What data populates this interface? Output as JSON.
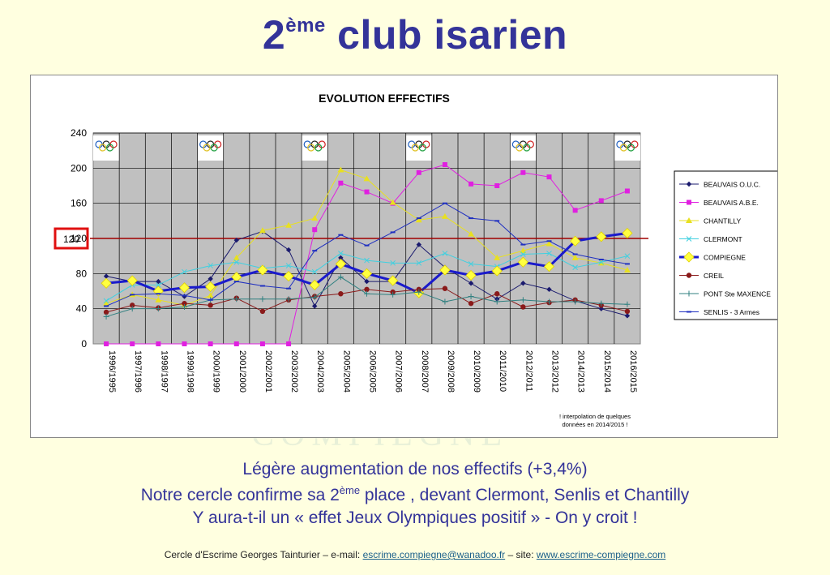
{
  "slide": {
    "title_main": "2",
    "title_sup": "ème",
    "title_rest": " club isarien",
    "watermark": "COMPIEGNE",
    "line1": "Légère augmentation de nos effectifs (+3,4%)",
    "line2_a": "Notre cercle confirme sa 2",
    "line2_sup": "ème",
    "line2_b": " place , devant Clermont, Senlis et Chantilly",
    "line3": "Y aura-t-il un « effet Jeux Olympiques positif » - On y croit !",
    "footer_a": "Cercle d'Escrime Georges Tainturier – e-mail: ",
    "footer_email": "escrime.compiegne@wanadoo.fr",
    "footer_b": " – site: ",
    "footer_site": "www.escrime-compiegne.com"
  },
  "chart_data": {
    "type": "line",
    "title": "EVOLUTION EFFECTIFS",
    "ylim": [
      0,
      240
    ],
    "yticks": [
      0,
      40,
      80,
      120,
      160,
      200,
      240
    ],
    "reference_line": 120,
    "reference_label": "120",
    "olympic_years": [
      "1996/1995",
      "2000/1999",
      "2004/2003",
      "2008/2007",
      "2012/2011",
      "2016/2015"
    ],
    "annotation_line1": "! interpolation de quelques",
    "annotation_line2": "données en 2014/2015 !",
    "categories": [
      "1996/1995",
      "1997/1996",
      "1998/1997",
      "1999/1998",
      "2000/1999",
      "2001/2000",
      "2002/2001",
      "2003/2002",
      "2004/2003",
      "2005/2004",
      "2006/2005",
      "2007/2006",
      "2008/2007",
      "2009/2008",
      "2010/2009",
      "2011/2010",
      "2012/2011",
      "2013/2012",
      "2014/2013",
      "2015/2014",
      "2016/2015"
    ],
    "series": [
      {
        "name": "BEAUVAIS O.U.C.",
        "color": "#1a1a6e",
        "marker": "diamond",
        "width": 1,
        "values": [
          77,
          71,
          71,
          54,
          74,
          118,
          128,
          107,
          43,
          98,
          71,
          71,
          113,
          87,
          69,
          51,
          69,
          62,
          49,
          40,
          32
        ]
      },
      {
        "name": "BEAUVAIS A.B.E.",
        "color": "#e020e0",
        "marker": "square",
        "width": 1,
        "values": [
          0,
          0,
          0,
          0,
          0,
          0,
          0,
          0,
          130,
          183,
          173,
          160,
          195,
          204,
          182,
          180,
          195,
          190,
          152,
          163,
          174
        ]
      },
      {
        "name": "CHANTILLY",
        "color": "#e8e020",
        "marker": "triangle",
        "width": 1,
        "values": [
          46,
          56,
          50,
          44,
          55,
          98,
          129,
          135,
          143,
          198,
          188,
          161,
          141,
          145,
          125,
          98,
          106,
          114,
          98,
          92,
          84
        ]
      },
      {
        "name": "CLERMONT",
        "color": "#40d0e0",
        "marker": "x",
        "width": 1,
        "values": [
          49,
          67,
          67,
          82,
          89,
          93,
          86,
          89,
          82,
          103,
          95,
          92,
          92,
          103,
          91,
          88,
          102,
          103,
          87,
          93,
          100
        ]
      },
      {
        "name": "COMPIEGNE",
        "color": "#1a1acc",
        "marker": "bigdiamond",
        "width": 3,
        "values": [
          69,
          72,
          60,
          64,
          65,
          76,
          84,
          77,
          67,
          91,
          80,
          72,
          58,
          84,
          78,
          83,
          93,
          88,
          117,
          122,
          126
        ]
      },
      {
        "name": "CREIL",
        "color": "#8a1a1a",
        "marker": "circle",
        "width": 1,
        "values": [
          36,
          44,
          41,
          46,
          44,
          52,
          37,
          50,
          54,
          57,
          62,
          59,
          62,
          63,
          46,
          57,
          42,
          47,
          50,
          44,
          37
        ]
      },
      {
        "name": "PONT Ste MAXENCE",
        "color": "#308080",
        "marker": "plus",
        "width": 1,
        "values": [
          31,
          40,
          40,
          42,
          50,
          51,
          51,
          51,
          53,
          76,
          57,
          56,
          59,
          48,
          54,
          48,
          50,
          48,
          48,
          46,
          45
        ]
      },
      {
        "name": "SENLIS -  3 Armes",
        "color": "#2030c0",
        "marker": "dash",
        "width": 1,
        "values": [
          43,
          56,
          57,
          55,
          50,
          71,
          66,
          63,
          106,
          124,
          112,
          127,
          143,
          160,
          143,
          140,
          113,
          117,
          102,
          96,
          91
        ]
      }
    ]
  }
}
